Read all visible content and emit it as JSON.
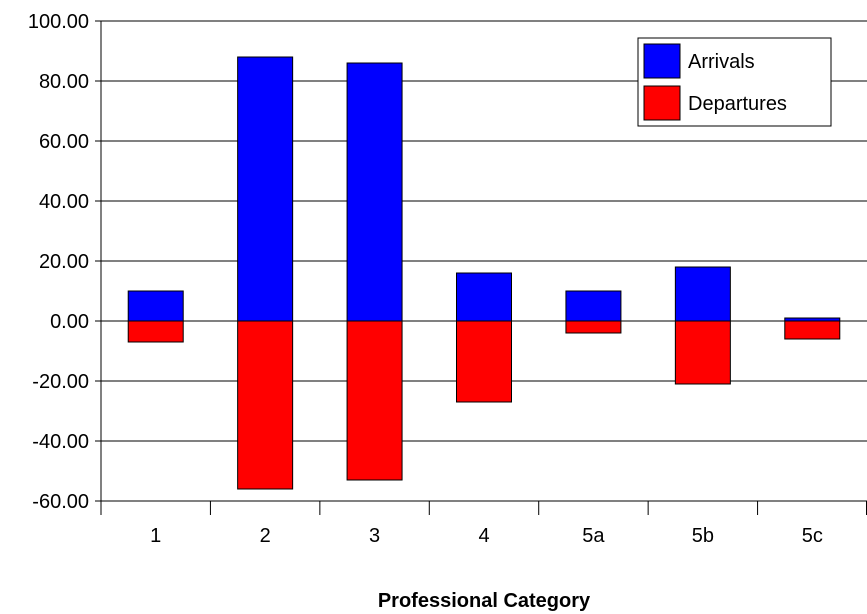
{
  "chart_data": {
    "type": "bar",
    "stacked": true,
    "categories": [
      "1",
      "2",
      "3",
      "4",
      "5a",
      "5b",
      "5c"
    ],
    "series": [
      {
        "name": "Arrivals",
        "color": "#0000ff",
        "values": [
          10,
          88,
          86,
          16,
          10,
          18,
          1
        ]
      },
      {
        "name": "Departures",
        "color": "#ff0000",
        "values": [
          -7,
          -56,
          -53,
          -27,
          -4,
          -21,
          -6
        ]
      }
    ],
    "yticks": [
      "100.00",
      "80.00",
      "60.00",
      "40.00",
      "20.00",
      "0.00",
      "-20.00",
      "-40.00",
      "-60.00"
    ],
    "ylim": [
      -60,
      100
    ],
    "ystep": 20,
    "grid": true,
    "xlabel": "Professional Category",
    "ylabel": "",
    "title": "",
    "legend_position": "top-right"
  }
}
